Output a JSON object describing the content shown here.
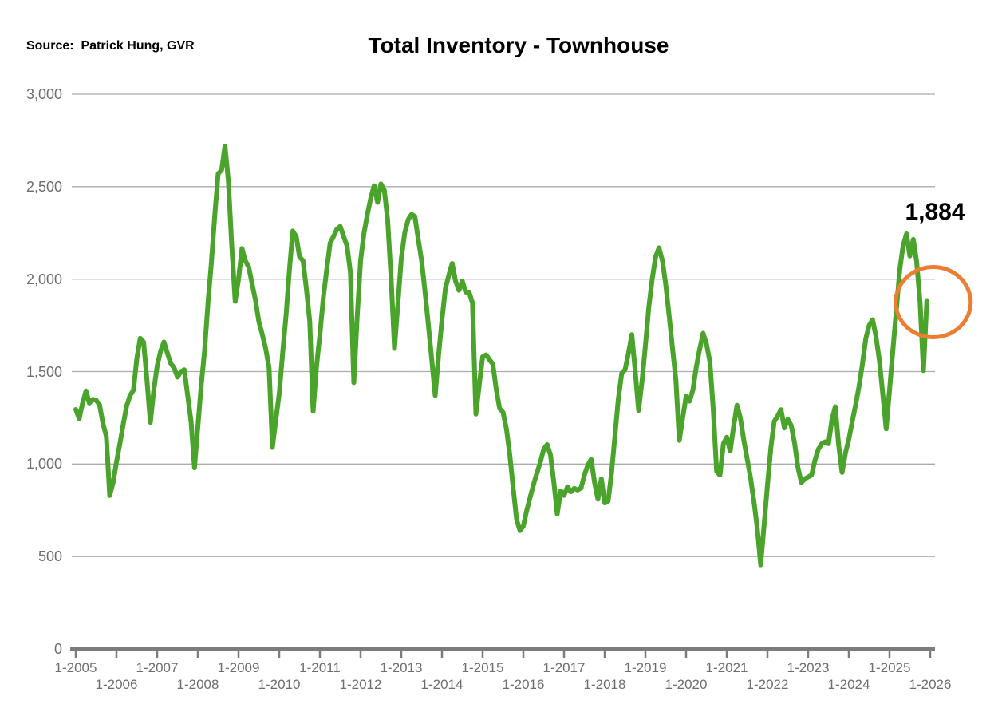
{
  "header": {
    "source_label": "Source:  Patrick Hung, GVR",
    "title": "Total Inventory - Townhouse"
  },
  "annotation": {
    "latest_value_label": "1,884"
  },
  "colors": {
    "line": "#4AA32A",
    "highlight_circle": "#ED7D31",
    "gridline": "#ACACAC",
    "axis": "#7C7C7C",
    "tick_label": "#6E6E6E",
    "text": "#000000",
    "background": "#FFFFFF"
  },
  "chart_data": {
    "type": "line",
    "title": "Total Inventory - Townhouse",
    "series_name": "Total Inventory - Townhouse",
    "frequency": "monthly",
    "start_month": "2005-01",
    "end_month": "2025-12",
    "ylim": [
      0,
      3000
    ],
    "grid": "horizontal",
    "legend": "none",
    "y_ticks": [
      0,
      500,
      1000,
      1500,
      2000,
      2500,
      3000
    ],
    "y_tick_labels": [
      "0",
      "500",
      "1,000",
      "1,500",
      "2,000",
      "2,500",
      "3,000"
    ],
    "x_tick_labels": [
      "1-2005",
      "1-2006",
      "1-2007",
      "1-2008",
      "1-2009",
      "1-2010",
      "1-2011",
      "1-2012",
      "1-2013",
      "1-2014",
      "1-2015",
      "1-2016",
      "1-2017",
      "1-2018",
      "1-2019",
      "1-2020",
      "1-2021",
      "1-2022",
      "1-2023",
      "1-2024",
      "1-2025",
      "1-2026"
    ],
    "highlighted_point": {
      "month": "2025-12",
      "value": 1884,
      "label": "1,884"
    },
    "values": [
      1295,
      1245,
      1330,
      1395,
      1330,
      1350,
      1345,
      1320,
      1220,
      1150,
      830,
      900,
      1010,
      1110,
      1215,
      1315,
      1370,
      1400,
      1570,
      1680,
      1660,
      1450,
      1225,
      1400,
      1530,
      1610,
      1660,
      1600,
      1545,
      1520,
      1470,
      1500,
      1510,
      1370,
      1230,
      980,
      1200,
      1430,
      1615,
      1875,
      2090,
      2350,
      2570,
      2590,
      2720,
      2530,
      2180,
      1880,
      2000,
      2165,
      2100,
      2065,
      1975,
      1885,
      1770,
      1700,
      1625,
      1520,
      1090,
      1240,
      1380,
      1600,
      1800,
      2050,
      2260,
      2230,
      2120,
      2100,
      1950,
      1770,
      1285,
      1530,
      1700,
      1900,
      2050,
      2195,
      2230,
      2270,
      2285,
      2230,
      2180,
      2035,
      1440,
      1800,
      2100,
      2250,
      2350,
      2440,
      2505,
      2415,
      2515,
      2480,
      2316,
      2000,
      1625,
      1870,
      2110,
      2250,
      2320,
      2350,
      2340,
      2215,
      2100,
      1930,
      1750,
      1560,
      1370,
      1590,
      1780,
      1950,
      2020,
      2085,
      1990,
      1940,
      1990,
      1930,
      1930,
      1870,
      1270,
      1430,
      1580,
      1590,
      1565,
      1540,
      1405,
      1300,
      1280,
      1190,
      1050,
      870,
      700,
      640,
      665,
      750,
      820,
      890,
      950,
      1010,
      1080,
      1105,
      1050,
      900,
      730,
      855,
      830,
      877,
      850,
      868,
      860,
      870,
      940,
      994,
      1025,
      900,
      810,
      920,
      790,
      800,
      950,
      1150,
      1350,
      1490,
      1510,
      1600,
      1700,
      1500,
      1290,
      1450,
      1640,
      1850,
      2000,
      2120,
      2169,
      2100,
      1970,
      1800,
      1625,
      1450,
      1128,
      1250,
      1366,
      1340,
      1400,
      1525,
      1620,
      1707,
      1650,
      1555,
      1300,
      960,
      940,
      1110,
      1145,
      1070,
      1200,
      1318,
      1250,
      1130,
      1030,
      925,
      800,
      650,
      455,
      670,
      885,
      1090,
      1230,
      1260,
      1294,
      1195,
      1242,
      1208,
      1113,
      980,
      900,
      920,
      930,
      940,
      1020,
      1080,
      1110,
      1120,
      1110,
      1240,
      1310,
      1100,
      955,
      1060,
      1134,
      1230,
      1320,
      1420,
      1540,
      1680,
      1750,
      1780,
      1690,
      1560,
      1380,
      1190,
      1400,
      1620,
      1830,
      2050,
      2180,
      2245,
      2125,
      2215,
      2095,
      1875,
      1505,
      1884
    ]
  }
}
